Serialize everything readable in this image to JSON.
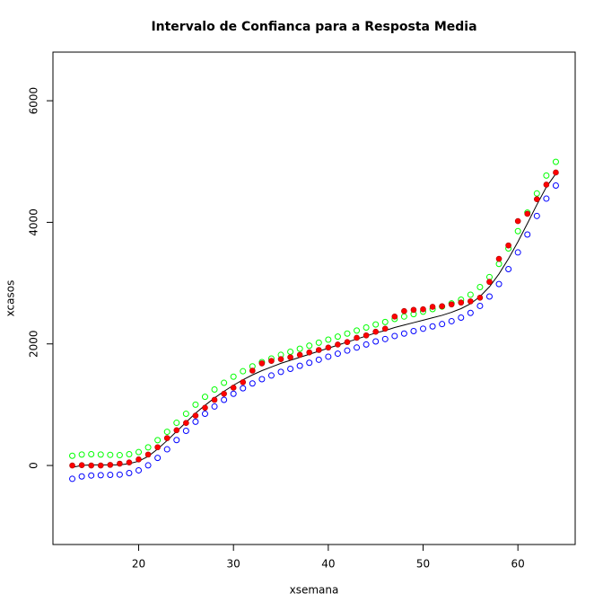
{
  "chart_data": {
    "type": "scatter",
    "title": "Intervalo de Confianca para a Resposta Media",
    "x_label": "xsemana",
    "y_label": "xcasos",
    "x": [
      13,
      14,
      15,
      16,
      17,
      18,
      19,
      20,
      21,
      22,
      23,
      24,
      25,
      26,
      27,
      28,
      29,
      30,
      31,
      32,
      33,
      34,
      35,
      36,
      37,
      38,
      39,
      40,
      41,
      42,
      43,
      44,
      45,
      46,
      47,
      48,
      49,
      50,
      51,
      52,
      53,
      54,
      55,
      56,
      57,
      58,
      59,
      60,
      61,
      62,
      63,
      64
    ],
    "series": [
      {
        "color": "#00ff00",
        "marker": "open",
        "values": [
          160,
          180,
          185,
          180,
          175,
          170,
          185,
          220,
          298,
          416,
          554,
          702,
          850,
          1000,
          1130,
          1250,
          1360,
          1460,
          1550,
          1630,
          1700,
          1760,
          1820,
          1870,
          1920,
          1970,
          2020,
          2070,
          2120,
          2170,
          2220,
          2270,
          2320,
          2360,
          2410,
          2450,
          2490,
          2530,
          2572,
          2614,
          2666,
          2728,
          2810,
          2935,
          3100,
          3315,
          3570,
          3855,
          4160,
          4475,
          4770,
          4995
        ]
      },
      {
        "color": "#0000ff",
        "marker": "open",
        "values": [
          -220,
          -180,
          -165,
          -160,
          -155,
          -150,
          -125,
          -80,
          2,
          124,
          266,
          418,
          570,
          720,
          850,
          970,
          1080,
          1180,
          1270,
          1350,
          1420,
          1480,
          1540,
          1590,
          1640,
          1690,
          1740,
          1790,
          1840,
          1890,
          1940,
          1990,
          2040,
          2080,
          2130,
          2170,
          2210,
          2250,
          2288,
          2326,
          2374,
          2432,
          2510,
          2625,
          2780,
          2985,
          3230,
          3505,
          3800,
          4105,
          4390,
          4605
        ]
      },
      {
        "color": "#000000",
        "marker": "line",
        "values": [
          -30,
          0,
          10,
          10,
          10,
          10,
          30,
          70,
          150,
          270,
          410,
          560,
          710,
          860,
          990,
          1110,
          1220,
          1320,
          1410,
          1490,
          1560,
          1620,
          1680,
          1730,
          1780,
          1830,
          1880,
          1930,
          1980,
          2030,
          2080,
          2130,
          2180,
          2220,
          2270,
          2310,
          2350,
          2390,
          2430,
          2470,
          2520,
          2580,
          2660,
          2780,
          2940,
          3150,
          3400,
          3680,
          3980,
          4290,
          4580,
          4800
        ]
      },
      {
        "color": "#ff0000",
        "marker": "filled",
        "values": [
          0,
          5,
          0,
          0,
          10,
          30,
          50,
          100,
          180,
          300,
          450,
          580,
          700,
          820,
          950,
          1080,
          1180,
          1280,
          1370,
          1560,
          1680,
          1720,
          1750,
          1780,
          1820,
          1860,
          1900,
          1940,
          1990,
          2030,
          2100,
          2140,
          2200,
          2250,
          2450,
          2540,
          2560,
          2570,
          2610,
          2620,
          2650,
          2680,
          2700,
          2760,
          3020,
          3400,
          3620,
          4020,
          4140,
          4380,
          4620,
          4820
        ]
      }
    ],
    "xlim": [
      10.96,
      66.04
    ],
    "ylim": [
      -1300,
      6800
    ],
    "xticks": [
      20,
      30,
      40,
      50,
      60
    ],
    "yticks": [
      0,
      2000,
      4000,
      6000
    ]
  }
}
